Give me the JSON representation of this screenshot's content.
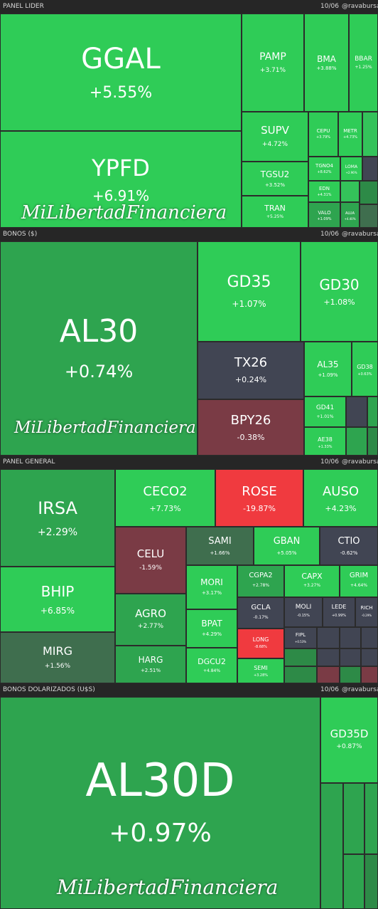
{
  "handle": "@ravabursatil",
  "watermark": "MiLibertadFinanciera",
  "colors": {
    "strong_up": "#2fcc57",
    "up": "#2ea44f",
    "mild_up": "#3f6e4e",
    "neutral": "#414553",
    "down": "#7a3b45",
    "strong_down": "#f03a3f"
  },
  "panels": [
    {
      "title": "PANEL LIDER",
      "date": "10/06",
      "tiles": [
        {
          "ticker": "GGAL",
          "change": "+5.55%"
        },
        {
          "ticker": "YPFD",
          "change": "+6.91%"
        },
        {
          "ticker": "PAMP",
          "change": "+3.71%"
        },
        {
          "ticker": "BMA",
          "change": "+3.88%"
        },
        {
          "ticker": "BBAR",
          "change": "+1.25%"
        },
        {
          "ticker": "SUPV",
          "change": "+4.72%"
        },
        {
          "ticker": "CEPU",
          "change": "+3.79%"
        },
        {
          "ticker": "METR",
          "change": "+4.73%"
        },
        {
          "ticker": "TGSU2",
          "change": "+3.52%"
        },
        {
          "ticker": "TGNO4",
          "change": "+8.62%"
        },
        {
          "ticker": "LOMA",
          "change": "+2.96%"
        },
        {
          "ticker": "TRAN",
          "change": "+5.25%"
        },
        {
          "ticker": "EDN",
          "change": "+4.31%"
        },
        {
          "ticker": "VALO",
          "change": "+1.09%"
        },
        {
          "ticker": "ALUA",
          "change": "+4.40%"
        }
      ]
    },
    {
      "title": "BONOS ($)",
      "date": "10/06",
      "tiles": [
        {
          "ticker": "AL30",
          "change": "+0.74%"
        },
        {
          "ticker": "GD35",
          "change": "+1.07%"
        },
        {
          "ticker": "GD30",
          "change": "+1.08%"
        },
        {
          "ticker": "TX26",
          "change": "+0.24%"
        },
        {
          "ticker": "BPY26",
          "change": "-0.38%"
        },
        {
          "ticker": "AL35",
          "change": "+1.09%"
        },
        {
          "ticker": "GD38",
          "change": "+0.63%"
        },
        {
          "ticker": "GD41",
          "change": "+1.01%"
        },
        {
          "ticker": "AE38",
          "change": "+1.33%"
        }
      ]
    },
    {
      "title": "PANEL GENERAL",
      "date": "10/06",
      "tiles": [
        {
          "ticker": "IRSA",
          "change": "+2.29%"
        },
        {
          "ticker": "CECO2",
          "change": "+7.73%"
        },
        {
          "ticker": "ROSE",
          "change": "-19.87%"
        },
        {
          "ticker": "AUSO",
          "change": "+4.23%"
        },
        {
          "ticker": "CELU",
          "change": "-1.59%"
        },
        {
          "ticker": "SAMI",
          "change": "+1.66%"
        },
        {
          "ticker": "GBAN",
          "change": "+5.05%"
        },
        {
          "ticker": "CTIO",
          "change": "-0.62%"
        },
        {
          "ticker": "BHIP",
          "change": "+6.85%"
        },
        {
          "ticker": "AGRO",
          "change": "+2.77%"
        },
        {
          "ticker": "MORI",
          "change": "+3.17%"
        },
        {
          "ticker": "CGPA2",
          "change": "+2.78%"
        },
        {
          "ticker": "CAPX",
          "change": "+3.27%"
        },
        {
          "ticker": "GRIM",
          "change": "+4.64%"
        },
        {
          "ticker": "GCLA",
          "change": "-0.17%"
        },
        {
          "ticker": "MOLI",
          "change": "-0.15%"
        },
        {
          "ticker": "LEDE",
          "change": "+0.99%"
        },
        {
          "ticker": "RICH",
          "change": "-0.29%"
        },
        {
          "ticker": "MIRG",
          "change": "+1.56%"
        },
        {
          "ticker": "HARG",
          "change": "+2.51%"
        },
        {
          "ticker": "BPAT",
          "change": "+4.29%"
        },
        {
          "ticker": "LONG",
          "change": "-8.68%"
        },
        {
          "ticker": "FIPL",
          "change": "+0.53%"
        },
        {
          "ticker": "DGCU2",
          "change": "+4.84%"
        },
        {
          "ticker": "SEMI",
          "change": "+3.28%"
        }
      ]
    },
    {
      "title": "BONOS DOLARIZADOS (U$S)",
      "date": "10/06",
      "tiles": [
        {
          "ticker": "AL30D",
          "change": "+0.97%"
        },
        {
          "ticker": "GD35D",
          "change": "+0.87%"
        }
      ]
    }
  ]
}
